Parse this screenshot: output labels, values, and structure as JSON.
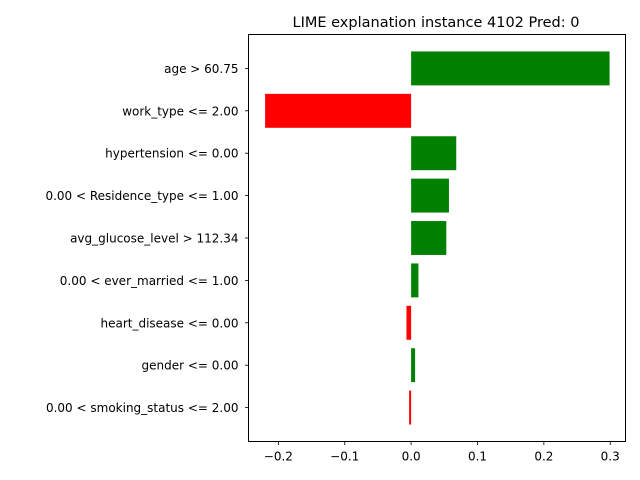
{
  "chart_data": {
    "type": "bar",
    "orientation": "horizontal",
    "title": "LIME explanation instance 4102 Pred: 0",
    "categories": [
      "age > 60.75",
      "work_type <= 2.00",
      "hypertension <= 0.00",
      "0.00 < Residence_type <= 1.00",
      "avg_glucose_level > 112.34",
      "0.00 < ever_married <= 1.00",
      "heart_disease <= 0.00",
      "gender <= 0.00",
      "0.00 < smoking_status <= 2.00"
    ],
    "values": [
      0.299,
      -0.22,
      0.068,
      0.057,
      0.053,
      0.011,
      -0.007,
      0.006,
      -0.003
    ],
    "positive_color": "#008000",
    "negative_color": "#ff0000",
    "xlim": [
      -0.245,
      0.323
    ],
    "xticks": [
      -0.2,
      -0.1,
      0.0,
      0.1,
      0.2,
      0.3
    ],
    "xtick_labels": [
      "−0.2",
      "−0.1",
      "0.0",
      "0.1",
      "0.2",
      "0.3"
    ],
    "grid": false,
    "legend": "none"
  }
}
